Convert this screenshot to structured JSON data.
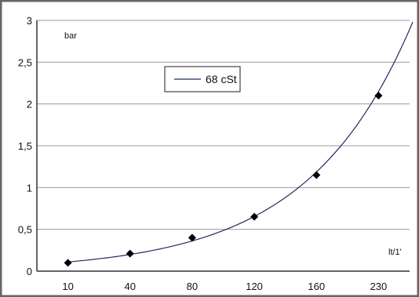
{
  "chart_data": {
    "type": "line",
    "title": "",
    "ylabel": "bar",
    "xlabel": "lt/1'",
    "categories": [
      "10",
      "40",
      "80",
      "120",
      "160",
      "230"
    ],
    "ylim": [
      0,
      3
    ],
    "yticks": [
      "0",
      "0,5",
      "1",
      "1,5",
      "2",
      "2,5",
      "3"
    ],
    "grid": true,
    "legend_position": "top-left",
    "series": [
      {
        "name": "68 cSt",
        "points": [
          {
            "x": "10",
            "y": 0.1
          },
          {
            "x": "40",
            "y": 0.21
          },
          {
            "x": "80",
            "y": 0.4
          },
          {
            "x": "120",
            "y": 0.65
          },
          {
            "x": "160",
            "y": 1.15
          },
          {
            "x": "230",
            "y": 2.1
          }
        ],
        "trendline": "exponential",
        "color": "#1f2a66",
        "marker": "diamond"
      }
    ],
    "colors": {
      "frame": "#666666",
      "plot_background": "#ffffff",
      "grid": "#9a9a9a",
      "marker": "#000000"
    }
  }
}
